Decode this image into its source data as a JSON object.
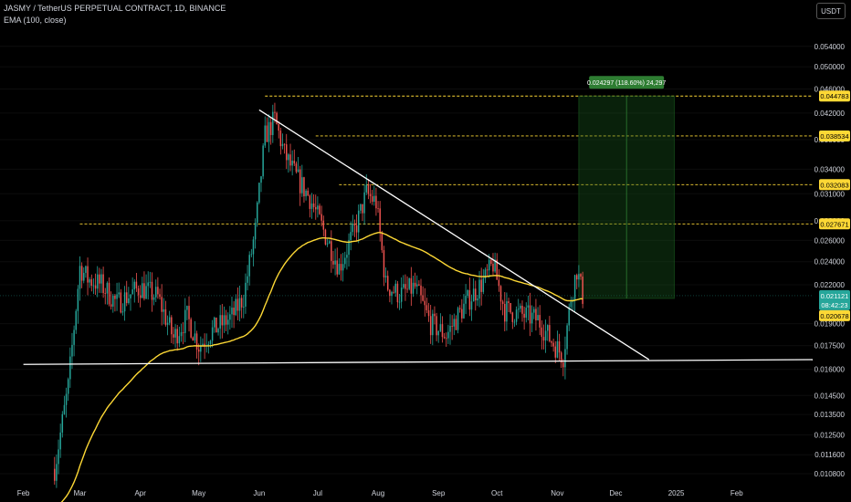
{
  "header": {
    "symbol_line": "JASMY / TetherUS PERPETUAL CONTRACT, 1D, BINANCE",
    "indicator_line": "EMA (100, close)",
    "currency": "USDT"
  },
  "chart_data": {
    "type": "candlestick",
    "title": "JASMY / TetherUS PERPETUAL CONTRACT, 1D, BINANCE",
    "scale": "log",
    "ylim": [
      0.0104,
      0.058
    ],
    "y_ticks": [
      "0.054000",
      "0.050000",
      "0.046000",
      "0.042000",
      "0.038000",
      "0.034000",
      "0.031000",
      "0.028000",
      "0.026000",
      "0.024000",
      "0.022000",
      "0.019000",
      "0.017500",
      "0.016000",
      "0.014500",
      "0.013500",
      "0.012500",
      "0.011600",
      "0.010800"
    ],
    "x_ticks": [
      "Feb",
      "Mar",
      "Apr",
      "May",
      "Jun",
      "Jul",
      "Aug",
      "Sep",
      "Oct",
      "Nov",
      "Dec",
      "2025",
      "Feb"
    ],
    "price_levels": [
      {
        "value": "0.044783",
        "color": "#fdd835",
        "style": "dashed"
      },
      {
        "value": "0.038534",
        "color": "#fdd835",
        "style": "dashed"
      },
      {
        "value": "0.032083",
        "color": "#fdd835",
        "style": "dashed"
      },
      {
        "value": "0.027671",
        "color": "#fdd835",
        "style": "dashed"
      }
    ],
    "current_price": {
      "value": "0.021121",
      "countdown": "08:42:23",
      "color": "#26a69a"
    },
    "ema_value": {
      "value": "0.020678",
      "color": "#fdd835"
    },
    "projection_box": {
      "label": "0.024297 (118.60%) 24,297",
      "color": "#1b5e20"
    },
    "indicators": [
      {
        "name": "EMA (100, close)",
        "color": "#fdd835"
      }
    ],
    "trendlines": [
      {
        "name": "descending-resistance",
        "start": [
          "2024-06-01",
          0.0425
        ],
        "end": [
          "2024-12-18",
          0.0166
        ],
        "color": "#ffffff"
      },
      {
        "name": "horizontal-support",
        "start": [
          "2024-02-01",
          0.0163
        ],
        "end": [
          "2025-03-12",
          0.0166
        ],
        "color": "#ffffff"
      }
    ],
    "colors": {
      "up": "#26a69a",
      "down": "#ef5350",
      "background": "#000000"
    }
  }
}
